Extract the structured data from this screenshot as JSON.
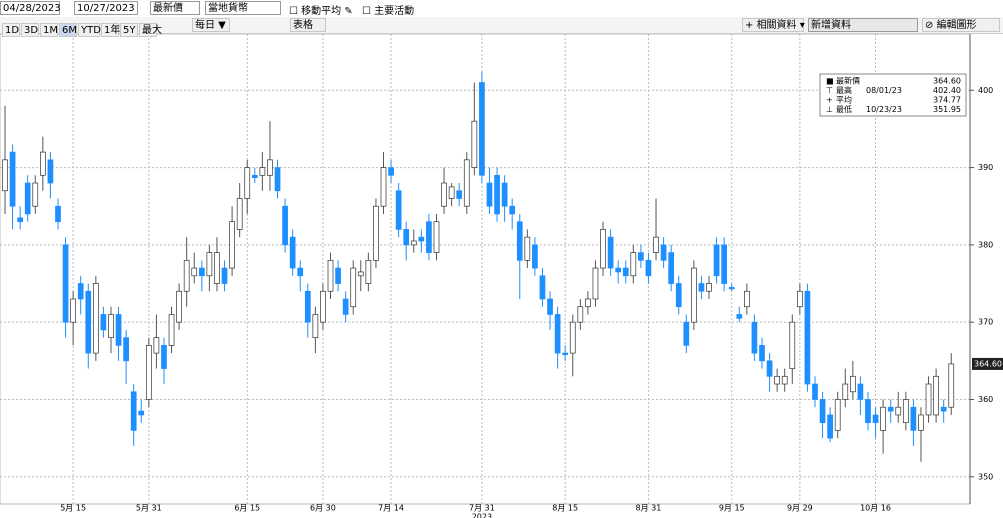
{
  "toolbar": {
    "start_date": "04/28/2023",
    "end_date": "10/27/2023",
    "price_field": "最新價",
    "currency": "當地貨幣",
    "checkboxes": [
      "移動平均",
      "主要活動"
    ],
    "periods": [
      "1D",
      "3D",
      "1M",
      "6M",
      "YTD",
      "1年",
      "5Y",
      "最大"
    ],
    "active_period": "6M",
    "frequency": "每日",
    "table": "表格",
    "related": "相關資料",
    "add_data": "新增資料",
    "edit": "編輯圖形"
  },
  "chart_data": {
    "type": "candlestick",
    "up_color": "#ffffff",
    "down_color": "#1e8fff",
    "grid": true,
    "ylim": [
      347,
      406.5
    ],
    "yticks": [
      350,
      360,
      370,
      380,
      390,
      400
    ],
    "year_label": "2023",
    "last_label": "364.60",
    "legend": [
      {
        "name": "最新價",
        "value": "364.60"
      },
      {
        "name": "最高",
        "date": "08/01/23",
        "value": "402.40"
      },
      {
        "name": "平均",
        "value": "374.77"
      },
      {
        "name": "最低",
        "date": "10/23/23",
        "value": "351.95"
      }
    ],
    "categories": [
      null,
      null,
      null,
      null,
      null,
      null,
      null,
      null,
      null,
      "5月 15",
      null,
      null,
      null,
      null,
      null,
      null,
      null,
      null,
      null,
      "5月 31",
      null,
      null,
      null,
      null,
      null,
      null,
      null,
      null,
      null,
      null,
      null,
      null,
      "6月 15",
      null,
      null,
      null,
      null,
      null,
      null,
      null,
      null,
      null,
      "6月 30",
      null,
      null,
      null,
      null,
      null,
      null,
      null,
      null,
      "7月 14",
      null,
      null,
      null,
      null,
      null,
      null,
      null,
      null,
      null,
      null,
      null,
      "7月 31",
      null,
      null,
      null,
      null,
      null,
      null,
      null,
      null,
      null,
      null,
      "8月 15",
      null,
      null,
      null,
      null,
      null,
      null,
      null,
      null,
      null,
      null,
      "8月 31",
      null,
      null,
      null,
      null,
      null,
      null,
      null,
      null,
      null,
      null,
      "9月 15",
      null,
      null,
      null,
      null,
      null,
      null,
      null,
      null,
      "9月 29",
      null,
      null,
      null,
      null,
      null,
      null,
      null,
      null,
      null,
      "10月 16",
      null,
      null,
      null,
      null,
      null,
      null,
      null,
      null,
      null,
      null
    ],
    "open": [
      387,
      392,
      383.5,
      388,
      385,
      389,
      391,
      385,
      380,
      370,
      375,
      374,
      366,
      371,
      368,
      371,
      368,
      361,
      358.5,
      360,
      366,
      367,
      367,
      370,
      374,
      376,
      377,
      376,
      375,
      377,
      377,
      382,
      386,
      389,
      389,
      389,
      390,
      385,
      381,
      377,
      374,
      368,
      370,
      374,
      377,
      373,
      372,
      376,
      375,
      378,
      385,
      390,
      387,
      382,
      380,
      381,
      383,
      379,
      385,
      386,
      387,
      385,
      390,
      401,
      388,
      389,
      388,
      385,
      383,
      378,
      380,
      376,
      373,
      371,
      366,
      366,
      370,
      372,
      373,
      377,
      381,
      377,
      377,
      376,
      379,
      378,
      379,
      380,
      379,
      375,
      370,
      370,
      375,
      374,
      380,
      380,
      374.5,
      371,
      372,
      370,
      367,
      365,
      362,
      362,
      364,
      372,
      374,
      362,
      360,
      358,
      356,
      360,
      361,
      362,
      360,
      358,
      356,
      359,
      358,
      357,
      359,
      356,
      358,
      358,
      359,
      359
    ],
    "close": [
      391,
      385,
      383,
      384,
      388,
      392,
      388,
      383,
      370,
      373,
      373,
      366,
      375,
      369,
      371,
      367,
      365,
      356,
      358,
      367,
      368,
      364,
      371,
      374,
      378,
      377,
      376,
      379,
      379,
      375,
      383,
      386,
      390,
      388.7,
      390,
      391,
      387,
      380,
      377,
      376,
      370,
      371,
      374,
      378,
      375,
      371,
      377,
      376.5,
      378,
      385,
      390,
      389,
      382,
      380,
      380.5,
      380.5,
      379,
      383,
      388,
      387.5,
      386,
      391,
      396,
      389,
      385,
      384,
      385,
      384,
      378,
      381,
      377,
      373,
      371,
      366,
      365.8,
      370,
      372,
      373,
      377,
      382,
      377,
      376.5,
      376,
      379,
      378,
      376,
      381,
      378,
      375,
      372,
      367,
      377,
      374,
      375,
      376,
      375,
      374.3,
      370.5,
      374,
      366,
      365,
      363,
      363,
      363,
      370,
      374,
      362,
      360,
      357,
      355,
      360,
      362,
      363,
      360,
      357,
      357,
      359,
      358.5,
      359,
      360,
      356,
      358,
      362,
      363,
      358.5,
      364.6
    ],
    "high": [
      398,
      393,
      385,
      389,
      389,
      394,
      392,
      386,
      381,
      374,
      376,
      375,
      376,
      372,
      372,
      372,
      369,
      362,
      360,
      368,
      371,
      368,
      372,
      375,
      381,
      379,
      378,
      380,
      381,
      378,
      385,
      388,
      391,
      390,
      392,
      396,
      391,
      386,
      382,
      378,
      375,
      372,
      375,
      379,
      378,
      374,
      378,
      378,
      379,
      386,
      392,
      391,
      388,
      383,
      382,
      382,
      384,
      384,
      390,
      388,
      388,
      392,
      401,
      402.4,
      390,
      390,
      389,
      386,
      384,
      382,
      381,
      377,
      374,
      372,
      367,
      371,
      373,
      374,
      378,
      383,
      382,
      378,
      378,
      380,
      380,
      379,
      386,
      381,
      380,
      376,
      371,
      378,
      376,
      376,
      381,
      381,
      375,
      372,
      375,
      371,
      368,
      366,
      364,
      364,
      371,
      375,
      375,
      363,
      361,
      359,
      361,
      364,
      365,
      363,
      361,
      359,
      360,
      360,
      361,
      361,
      360,
      359,
      363,
      364,
      360,
      366
    ],
    "low": [
      384,
      382,
      382,
      383,
      384,
      387,
      386,
      382,
      368,
      367,
      371,
      364,
      365,
      368,
      366,
      365,
      362,
      354,
      357,
      359,
      364,
      362,
      366,
      369,
      372,
      375,
      374,
      374,
      374,
      374,
      376,
      381,
      384,
      388,
      387,
      387,
      386,
      379,
      376,
      374,
      368,
      366,
      369,
      373,
      374,
      370,
      371,
      374,
      374,
      377,
      384,
      388,
      381,
      378,
      379,
      379,
      378,
      378,
      384,
      385,
      385,
      384,
      389,
      388,
      384,
      383,
      383,
      382,
      373,
      377,
      376,
      372,
      369,
      364,
      365,
      363,
      369,
      371,
      372,
      376,
      376,
      375,
      375,
      375,
      377,
      375,
      378,
      377,
      374,
      371,
      366,
      369,
      373,
      373,
      375,
      374,
      374,
      370,
      371,
      365,
      364,
      361,
      361,
      361,
      362,
      371,
      361,
      359,
      355,
      354.5,
      355,
      359,
      360,
      358,
      356,
      355,
      353,
      357,
      357,
      356,
      354,
      351.95,
      357,
      357,
      357,
      358
    ]
  }
}
